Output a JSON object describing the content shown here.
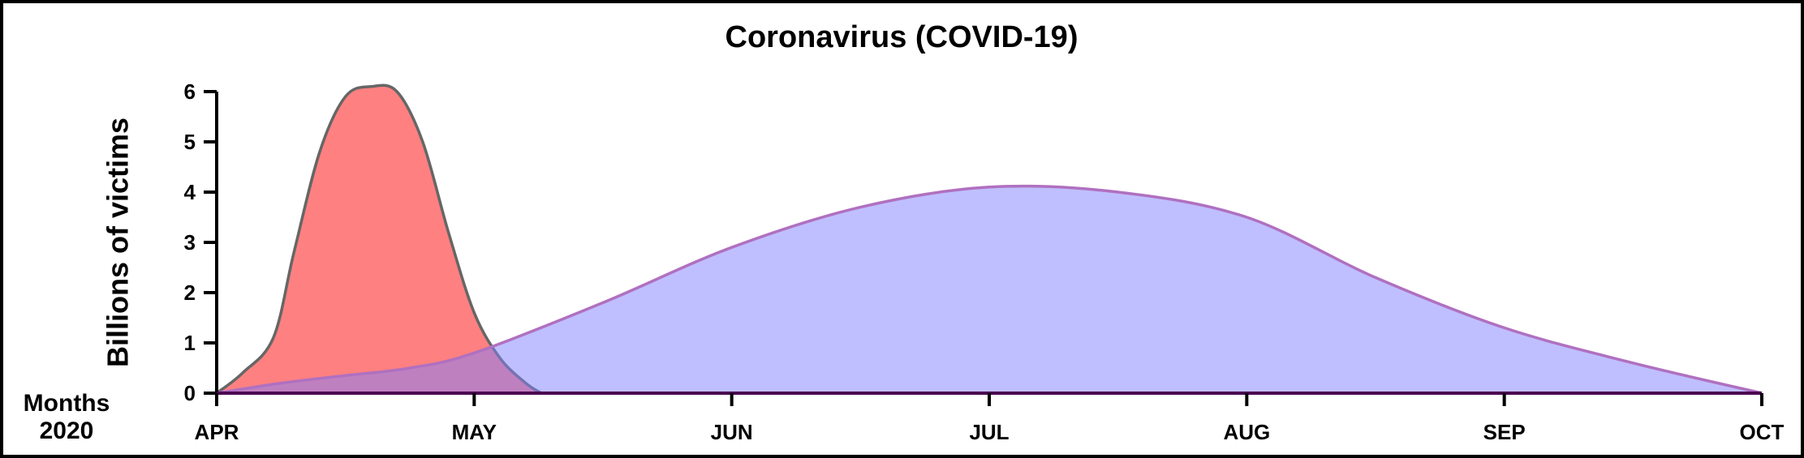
{
  "chart_data": {
    "type": "area",
    "title": "Coronavirus (COVID-19)",
    "ylabel": "Billions of victims",
    "xlabel": [
      "Months",
      "2020"
    ],
    "xlim": [
      0,
      6
    ],
    "xticks": [
      {
        "value": 0,
        "label": "APR"
      },
      {
        "value": 1,
        "label": "MAY"
      },
      {
        "value": 2,
        "label": "JUN"
      },
      {
        "value": 3,
        "label": "JUL"
      },
      {
        "value": 4,
        "label": "AUG"
      },
      {
        "value": 5,
        "label": "SEP"
      },
      {
        "value": 6,
        "label": "OCT"
      }
    ],
    "ylim": [
      0,
      6
    ],
    "yticks": [
      0,
      1,
      2,
      3,
      4,
      5,
      6
    ],
    "series": [
      {
        "color": "#ff8080",
        "stroke": "#666666",
        "opacity": 1,
        "x": [
          0,
          0.1,
          0.22,
          0.3,
          0.4,
          0.5,
          0.6,
          0.7,
          0.8,
          0.9,
          1.0,
          1.1,
          1.2,
          1.26
        ],
        "values": [
          0,
          0.4,
          1.1,
          2.8,
          4.8,
          5.9,
          6.1,
          6.0,
          5.0,
          3.2,
          1.6,
          0.7,
          0.2,
          0
        ]
      },
      {
        "color": "#8080ff",
        "stroke": "#b070c0",
        "opacity": 0.5,
        "x": [
          0,
          0.25,
          0.5,
          0.75,
          1,
          1.5,
          2,
          2.5,
          3,
          3.5,
          4,
          4.5,
          5,
          5.5,
          6
        ],
        "values": [
          0,
          0.2,
          0.35,
          0.5,
          0.8,
          1.8,
          2.9,
          3.7,
          4.1,
          4.0,
          3.5,
          2.3,
          1.3,
          0.6,
          0
        ]
      }
    ]
  }
}
